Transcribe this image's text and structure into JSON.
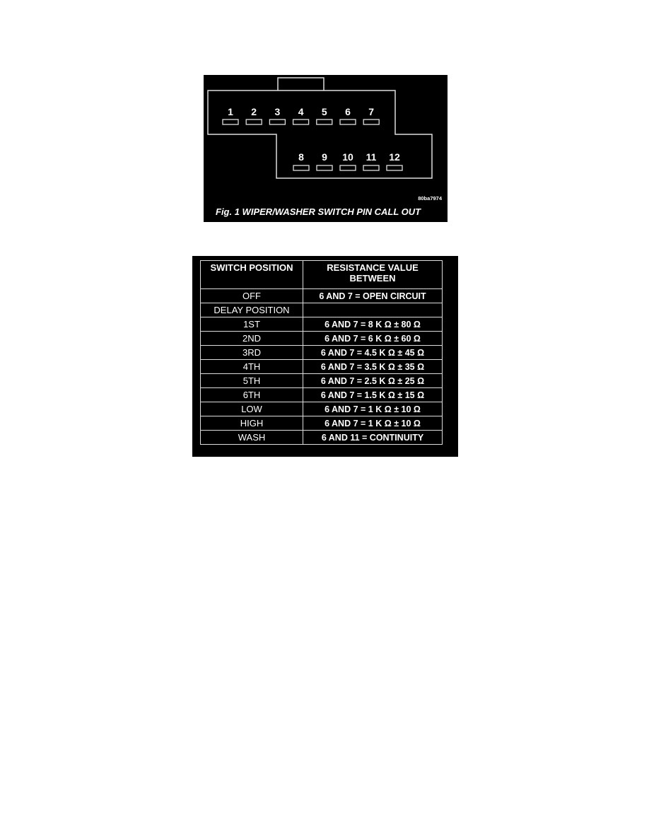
{
  "figure1": {
    "top_pins": [
      "1",
      "2",
      "3",
      "4",
      "5",
      "6",
      "7"
    ],
    "bottom_pins": [
      "8",
      "9",
      "10",
      "11",
      "12"
    ],
    "image_code": "80ba7974",
    "caption": "Fig. 1 WIPER/WASHER SWITCH PIN CALL OUT"
  },
  "table": {
    "headers": [
      "SWITCH POSITION",
      "RESISTANCE VALUE BETWEEN"
    ],
    "rows": [
      [
        "OFF",
        "6 AND 7 = OPEN CIRCUIT"
      ],
      [
        "DELAY POSITION",
        ""
      ],
      [
        "1ST",
        "6 AND 7 = 8 K Ω ± 80 Ω"
      ],
      [
        "2ND",
        "6 AND 7 = 6 K Ω ± 60 Ω"
      ],
      [
        "3RD",
        "6 AND 7 = 4.5 K Ω ± 45 Ω"
      ],
      [
        "4TH",
        "6 AND 7 = 3.5 K Ω ± 35 Ω"
      ],
      [
        "5TH",
        "6 AND 7 = 2.5 K Ω ± 25 Ω"
      ],
      [
        "6TH",
        "6 AND 7 = 1.5 K Ω ± 15 Ω"
      ],
      [
        "LOW",
        "6 AND 7 = 1 K Ω ± 10 Ω"
      ],
      [
        "HIGH",
        "6 AND 7 = 1 K Ω ± 10 Ω"
      ],
      [
        "WASH",
        "6 AND 11 = CONTINUITY"
      ]
    ]
  }
}
